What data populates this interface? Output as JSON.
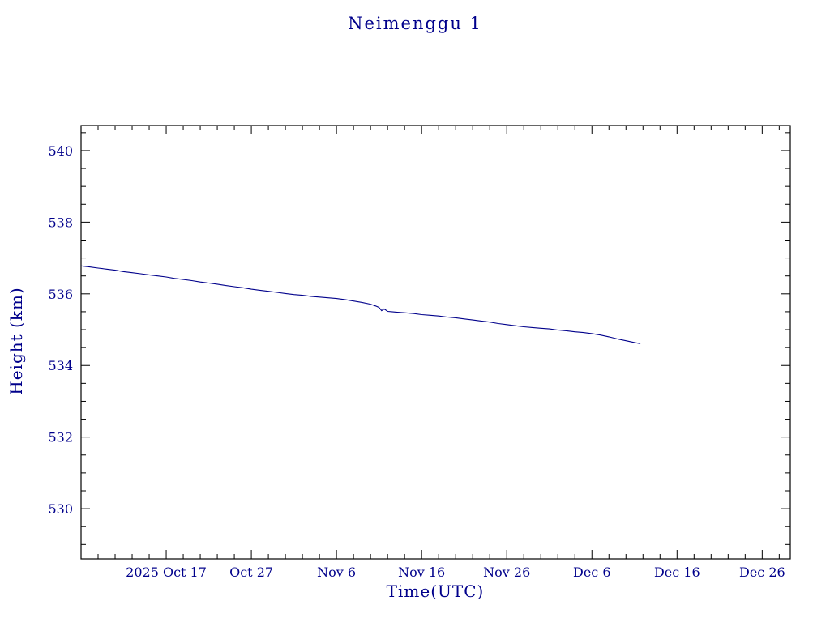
{
  "title": "Neimenggu 1",
  "colors": {
    "text": "#00008B",
    "line": "#00008B",
    "axis": "#000000",
    "background": "#ffffff"
  },
  "chart_data": {
    "type": "line",
    "title": "Neimenggu 1",
    "xlabel": "Time(UTC)",
    "ylabel": "Height (km)",
    "x_unit": "days since 2025 Oct 7",
    "xlim_days": [
      0,
      83.3
    ],
    "ylim": [
      528.6,
      540.7
    ],
    "y_ticks": [
      530,
      532,
      534,
      536,
      538,
      540
    ],
    "y_minor_step": 0.5,
    "x_ticks": [
      {
        "day": 10,
        "label": "2025 Oct 17"
      },
      {
        "day": 20,
        "label": "Oct 27"
      },
      {
        "day": 30,
        "label": "Nov 6"
      },
      {
        "day": 40,
        "label": "Nov 16"
      },
      {
        "day": 50,
        "label": "Nov 26"
      },
      {
        "day": 60,
        "label": "Dec 6"
      },
      {
        "day": 70,
        "label": "Dec 16"
      },
      {
        "day": 80,
        "label": "Dec 26"
      }
    ],
    "x_minor_step_days": 2,
    "grid": false,
    "legend": false,
    "series": [
      {
        "name": "Neimenggu 1 height",
        "color": "#00008B",
        "points": [
          [
            0,
            536.78
          ],
          [
            1,
            536.75
          ],
          [
            2,
            536.72
          ],
          [
            3,
            536.69
          ],
          [
            4,
            536.66
          ],
          [
            5,
            536.62
          ],
          [
            6,
            536.59
          ],
          [
            7,
            536.56
          ],
          [
            8,
            536.53
          ],
          [
            9,
            536.5
          ],
          [
            10,
            536.47
          ],
          [
            11,
            536.43
          ],
          [
            12,
            536.4
          ],
          [
            13,
            536.37
          ],
          [
            14,
            536.33
          ],
          [
            15,
            536.3
          ],
          [
            16,
            536.27
          ],
          [
            17,
            536.23
          ],
          [
            18,
            536.2
          ],
          [
            19,
            536.17
          ],
          [
            20,
            536.13
          ],
          [
            21,
            536.1
          ],
          [
            22,
            536.07
          ],
          [
            23,
            536.04
          ],
          [
            24,
            536.01
          ],
          [
            25,
            535.98
          ],
          [
            26,
            535.96
          ],
          [
            27,
            535.93
          ],
          [
            28,
            535.91
          ],
          [
            29,
            535.89
          ],
          [
            30,
            535.87
          ],
          [
            31,
            535.84
          ],
          [
            32,
            535.8
          ],
          [
            33,
            535.76
          ],
          [
            34,
            535.71
          ],
          [
            34.6,
            535.66
          ],
          [
            35.0,
            535.62
          ],
          [
            35.3,
            535.53
          ],
          [
            35.6,
            535.58
          ],
          [
            36.0,
            535.51
          ],
          [
            36.5,
            535.5
          ],
          [
            37,
            535.49
          ],
          [
            38,
            535.47
          ],
          [
            39,
            535.45
          ],
          [
            40,
            535.42
          ],
          [
            41,
            535.4
          ],
          [
            42,
            535.38
          ],
          [
            43,
            535.35
          ],
          [
            44,
            535.33
          ],
          [
            45,
            535.3
          ],
          [
            46,
            535.27
          ],
          [
            47,
            535.24
          ],
          [
            48,
            535.21
          ],
          [
            49,
            535.17
          ],
          [
            50,
            535.14
          ],
          [
            51,
            535.11
          ],
          [
            52,
            535.08
          ],
          [
            53,
            535.06
          ],
          [
            54,
            535.04
          ],
          [
            55,
            535.02
          ],
          [
            56,
            534.99
          ],
          [
            57,
            534.97
          ],
          [
            58,
            534.94
          ],
          [
            59,
            534.92
          ],
          [
            60,
            534.89
          ],
          [
            61,
            534.85
          ],
          [
            62,
            534.8
          ],
          [
            63,
            534.74
          ],
          [
            64,
            534.69
          ],
          [
            65,
            534.64
          ],
          [
            65.7,
            534.61
          ]
        ]
      }
    ]
  }
}
